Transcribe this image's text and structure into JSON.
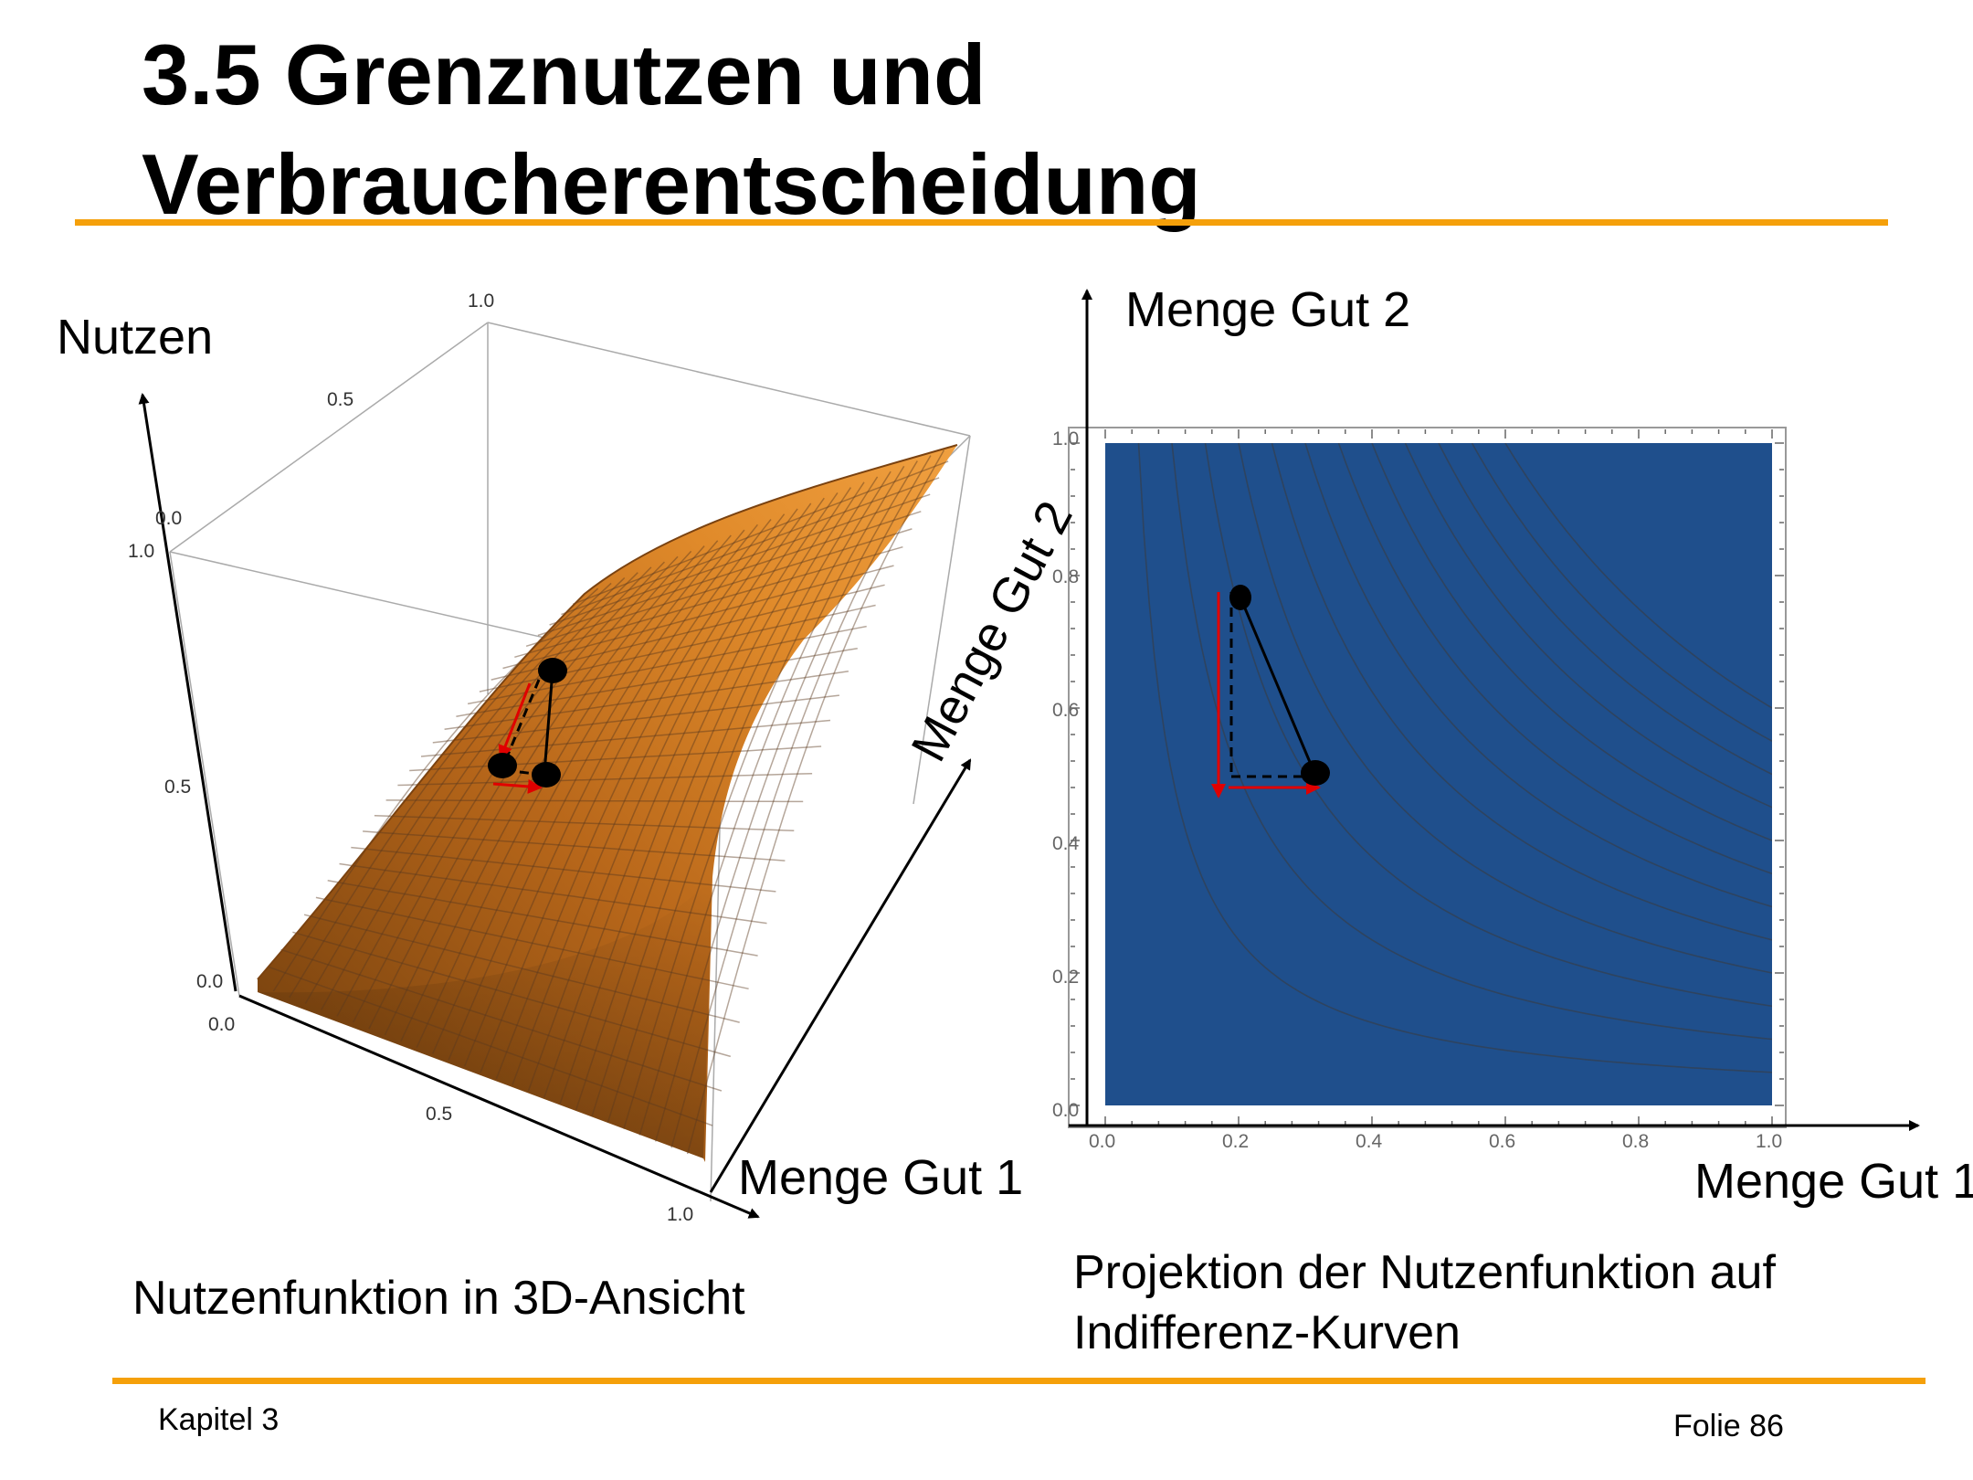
{
  "slide": {
    "title_line1": "3.5 Grenznutzen und",
    "title_line2": "Verbraucherentscheidung",
    "accent_color": "#f5a00a"
  },
  "left_panel": {
    "axis_label_utility": "Nutzen",
    "axis_label_good1": "Menge Gut 1",
    "axis_label_good2": "Menge Gut 2",
    "ticks_vertical": [
      "0.0",
      "0.5",
      "1.0"
    ],
    "ticks_good1": [
      "0.0",
      "0.5",
      "1.0"
    ],
    "ticks_good2": [
      "0.0",
      "0.5",
      "1.0"
    ],
    "caption": "Nutzenfunktion in 3D-Ansicht",
    "surface_color": "#d27d1e"
  },
  "right_panel": {
    "axis_label_good2": "Menge Gut 2",
    "axis_label_good1": "Menge Gut 1",
    "x_ticks": [
      "0.0",
      "0.2",
      "0.4",
      "0.6",
      "0.8",
      "1.0"
    ],
    "y_ticks": [
      "0.0",
      "0.2",
      "0.4",
      "0.6",
      "0.8",
      "1.0"
    ],
    "caption_line1": "Projektion der Nutzenfunktion auf",
    "caption_line2": "Indifferenz-Kurven",
    "contour_levels": [
      0.05,
      0.1,
      0.15,
      0.2,
      0.25,
      0.3,
      0.35,
      0.4,
      0.45,
      0.5,
      0.55,
      0.6
    ],
    "points": [
      {
        "x": 0.21,
        "y": 0.76
      },
      {
        "x": 0.32,
        "y": 0.5
      }
    ],
    "arrow_color": "#e00000"
  },
  "footer": {
    "chapter": "Kapitel 3",
    "slide_no": "Folie 86"
  }
}
